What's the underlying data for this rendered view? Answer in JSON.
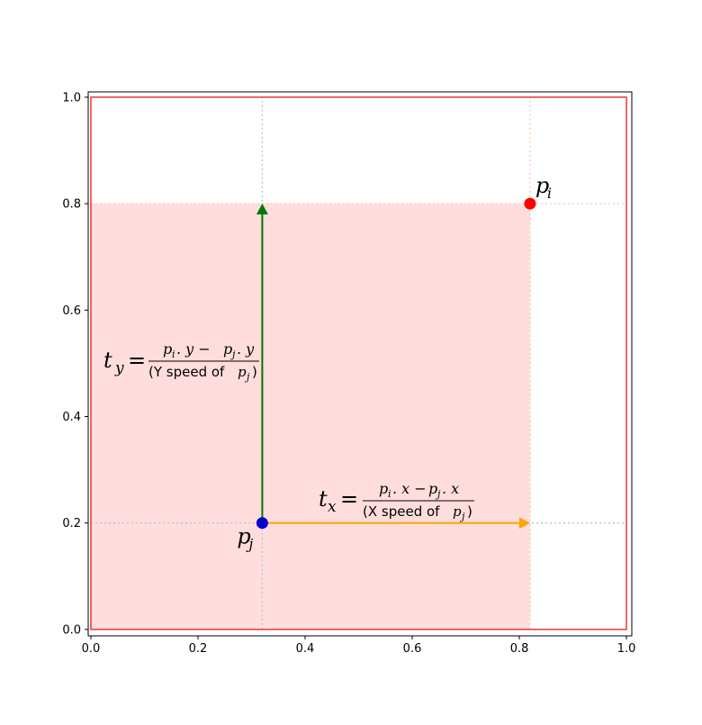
{
  "chart_data": {
    "type": "scatter",
    "xlim": [
      -0.005,
      1.01
    ],
    "ylim": [
      -0.012,
      1.01
    ],
    "x_ticks": [
      "0.0",
      "0.2",
      "0.4",
      "0.6",
      "0.8",
      "1.0"
    ],
    "y_ticks": [
      "0.0",
      "0.2",
      "0.4",
      "0.6",
      "0.8",
      "1.0"
    ],
    "grid": false,
    "points": [
      {
        "name": "p_i",
        "label_base": "p",
        "label_sub": "i",
        "x": 0.82,
        "y": 0.8,
        "color": "#ff0000"
      },
      {
        "name": "p_j",
        "label_base": "p",
        "label_sub": "j",
        "x": 0.32,
        "y": 0.2,
        "color": "#0000cc"
      }
    ],
    "shaded_region": {
      "x": [
        0,
        0.82
      ],
      "y": [
        0,
        0.8
      ],
      "color": "#ffdddd"
    },
    "boundary_box": {
      "x": [
        0,
        1
      ],
      "y": [
        0,
        1
      ],
      "color": "#e8191b"
    },
    "guide_lines": [
      {
        "orientation": "vertical",
        "value": 0.32,
        "color": "#a6c8ee"
      },
      {
        "orientation": "horizontal",
        "value": 0.2,
        "color": "#a6c8ee"
      },
      {
        "orientation": "vertical",
        "value": 0.82,
        "color": "#f8c9a8"
      },
      {
        "orientation": "horizontal",
        "value": 0.8,
        "color": "#f8c9a8"
      }
    ],
    "arrows": [
      {
        "name": "ty",
        "from": [
          0.32,
          0.2
        ],
        "to": [
          0.32,
          0.8
        ],
        "color": "#007700"
      },
      {
        "name": "tx",
        "from": [
          0.32,
          0.2
        ],
        "to": [
          0.82,
          0.2
        ],
        "color": "#ffa500"
      }
    ],
    "annotations": {
      "ty": {
        "lhs_var": "t",
        "lhs_sub": "y",
        "equals": "=",
        "numerator": "p",
        "numerator_parts": [
          "p",
          "i",
          ". y − ",
          "p",
          "j",
          ". y"
        ],
        "denominator_parts": [
          "(Y speed of ",
          "p",
          "j",
          ")"
        ]
      },
      "tx": {
        "lhs_var": "t",
        "lhs_sub": "x",
        "equals": "=",
        "numerator_parts": [
          "p",
          "i",
          ". x − ",
          "p",
          "j",
          ". x"
        ],
        "denominator_parts": [
          "(X speed of ",
          "p",
          "j",
          ")"
        ]
      }
    }
  }
}
